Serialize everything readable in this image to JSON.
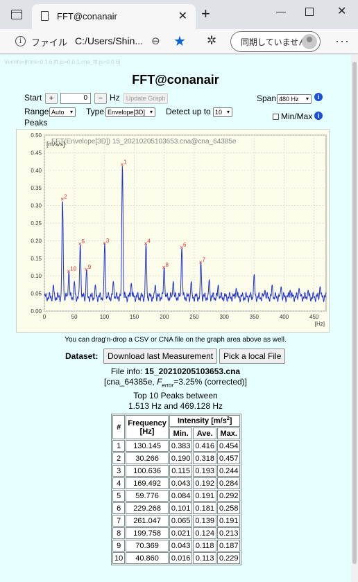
{
  "browser": {
    "tab_title": "FFT@conanair",
    "file_label": "ファイル",
    "url": "C:/Users/Shin...",
    "sync_label": "同期していません"
  },
  "page": {
    "version": "Verinfo=[html=0.1.6,fft.js=0.0.1,cna_fft.js=0.0.6]",
    "title": "FFT@conanair",
    "start_label": "Start",
    "start_plus": "+",
    "start_value": "0",
    "start_minus": "−",
    "hz_label": "Hz",
    "update_graph": "Update Graph",
    "span_label": "Span",
    "span_value": "480 Hz",
    "range_label": "Range",
    "range_value": "Auto",
    "type_label": "Type",
    "type_value": "Envelope[3D]",
    "detect_label": "Detect up to",
    "detect_value": "10",
    "peaks_label": "Peaks",
    "minmax_label": "Min/Max",
    "dnd_note": "You can drag'n-drop a CSV or CNA file on the graph area above as well.",
    "dataset_label": "Dataset:",
    "download_btn": "Download last Measurement",
    "pick_btn": "Pick a local File",
    "file_info_label": "File info:",
    "file_info_name": "15_20210205103653.cna",
    "file_info_sub_pre": "[cna_64385e, ",
    "file_info_sub_f": "F",
    "file_info_sub_err": "error",
    "file_info_sub_post": "=3.25% (corrected)]",
    "top_peaks_line1": "Top 10 Peaks between",
    "top_peaks_line2": "1.513 Hz and 469.128 Hz"
  },
  "table": {
    "col_num": "#",
    "col_freq": "Frequency [Hz]",
    "col_intensity": "Intensity [m/s",
    "col_intensity_sup": "2",
    "col_intensity_end": "]",
    "col_min": "Min.",
    "col_ave": "Ave.",
    "col_max": "Max.",
    "rows": [
      [
        "1",
        "130.145",
        "0.383",
        "0.416",
        "0.454"
      ],
      [
        "2",
        "30.266",
        "0.190",
        "0.318",
        "0.457"
      ],
      [
        "3",
        "100.636",
        "0.115",
        "0.193",
        "0.244"
      ],
      [
        "4",
        "169.492",
        "0.043",
        "0.192",
        "0.284"
      ],
      [
        "5",
        "59.776",
        "0.084",
        "0.191",
        "0.292"
      ],
      [
        "6",
        "229.268",
        "0.101",
        "0.181",
        "0.258"
      ],
      [
        "7",
        "261.047",
        "0.065",
        "0.139",
        "0.191"
      ],
      [
        "8",
        "199.758",
        "0.021",
        "0.124",
        "0.213"
      ],
      [
        "9",
        "70.369",
        "0.043",
        "0.118",
        "0.187"
      ],
      [
        "10",
        "40.860",
        "0.016",
        "0.113",
        "0.229"
      ]
    ]
  },
  "chart_data": {
    "type": "line",
    "title": "FFT(Envelope[3D])  15_20210205103653.cna@cna_64385e",
    "ylabel": "[m/s/s]",
    "xlabel": "[Hz]",
    "xlim": [
      0,
      470
    ],
    "ylim": [
      0,
      0.5
    ],
    "xticks": [
      0,
      50,
      100,
      150,
      200,
      250,
      300,
      350,
      400,
      450
    ],
    "yticks": [
      0.0,
      0.05,
      0.1,
      0.15,
      0.2,
      0.25,
      0.3,
      0.35,
      0.4,
      0.45,
      0.5
    ],
    "grid": true,
    "line_color": "#2233cc",
    "peak_color": "#e03030",
    "peaks": [
      {
        "label": "1",
        "x": 130.145,
        "y": 0.416
      },
      {
        "label": "2",
        "x": 30.266,
        "y": 0.318
      },
      {
        "label": "3",
        "x": 100.636,
        "y": 0.193
      },
      {
        "label": "4",
        "x": 169.492,
        "y": 0.192
      },
      {
        "label": "5",
        "x": 59.776,
        "y": 0.191
      },
      {
        "label": "6",
        "x": 229.268,
        "y": 0.181
      },
      {
        "label": "7",
        "x": 261.047,
        "y": 0.139
      },
      {
        "label": "8",
        "x": 199.758,
        "y": 0.124
      },
      {
        "label": "9",
        "x": 70.369,
        "y": 0.118
      },
      {
        "label": "10",
        "x": 40.86,
        "y": 0.113
      }
    ],
    "secondary_peaks": [
      {
        "x": 15,
        "y": 0.075
      },
      {
        "x": 50,
        "y": 0.085
      },
      {
        "x": 85,
        "y": 0.075
      },
      {
        "x": 115,
        "y": 0.085
      },
      {
        "x": 145,
        "y": 0.08
      },
      {
        "x": 185,
        "y": 0.075
      },
      {
        "x": 215,
        "y": 0.085
      },
      {
        "x": 245,
        "y": 0.085
      },
      {
        "x": 275,
        "y": 0.09
      },
      {
        "x": 290,
        "y": 0.075
      },
      {
        "x": 320,
        "y": 0.065
      },
      {
        "x": 350,
        "y": 0.105
      },
      {
        "x": 368,
        "y": 0.06
      },
      {
        "x": 380,
        "y": 0.075
      },
      {
        "x": 395,
        "y": 0.07
      },
      {
        "x": 410,
        "y": 0.06
      },
      {
        "x": 425,
        "y": 0.065
      },
      {
        "x": 440,
        "y": 0.06
      },
      {
        "x": 460,
        "y": 0.07
      }
    ],
    "baseline": 0.04
  }
}
